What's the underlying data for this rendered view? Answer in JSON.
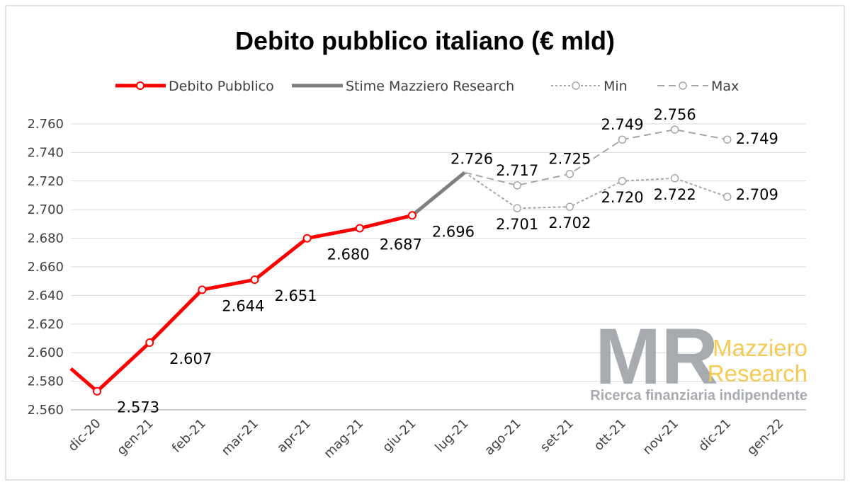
{
  "chart_data": {
    "type": "line",
    "title": "Debito pubblico italiano (€ mld)",
    "categories": [
      "dic-20",
      "gen-21",
      "feb-21",
      "mar-21",
      "apr-21",
      "mag-21",
      "giu-21",
      "lug-21",
      "ago-21",
      "set-21",
      "ott-21",
      "nov-21",
      "dic-21",
      "gen-22"
    ],
    "ylim": [
      2560,
      2760
    ],
    "yticks": [
      "2.560",
      "2.580",
      "2.600",
      "2.620",
      "2.640",
      "2.660",
      "2.680",
      "2.700",
      "2.720",
      "2.740",
      "2.760"
    ],
    "grid": true,
    "legend_position": "top",
    "series": [
      {
        "name": "Debito Pubblico",
        "color": "#ff0000",
        "style": "solid",
        "values": [
          2573,
          2607,
          2644,
          2651,
          2680,
          2687,
          2696,
          null,
          null,
          null,
          null,
          null,
          null,
          null
        ],
        "labels": [
          "2.573",
          "2.607",
          "2.644",
          "2.651",
          "2.680",
          "2.687",
          "2.696"
        ]
      },
      {
        "name": "Stime Mazziero Research",
        "color": "#7f7f7f",
        "style": "solid",
        "values": [
          null,
          null,
          null,
          null,
          null,
          null,
          2696,
          2726,
          null,
          null,
          null,
          null,
          null,
          null
        ],
        "labels": [
          "2.726"
        ]
      },
      {
        "name": "Min",
        "color": "#a6a6a6",
        "style": "dotted",
        "values": [
          null,
          null,
          null,
          null,
          null,
          null,
          null,
          2726,
          2701,
          2702,
          2720,
          2722,
          2709,
          null
        ],
        "labels": [
          "2.701",
          "2.702",
          "2.720",
          "2.722",
          "2.709"
        ]
      },
      {
        "name": "Max",
        "color": "#a6a6a6",
        "style": "dashed",
        "values": [
          null,
          null,
          null,
          null,
          null,
          null,
          null,
          2726,
          2717,
          2725,
          2749,
          2756,
          2749,
          null
        ],
        "labels": [
          "2.717",
          "2.725",
          "2.749",
          "2.756",
          "2.749"
        ]
      }
    ]
  },
  "watermark": {
    "logo_text": "MR",
    "brand_line1": "Mazziero",
    "brand_line2": "Research",
    "tagline": "Ricerca finanziaria indipendente",
    "colors": {
      "logo": "#9ea3a8",
      "brand": "#f5c542",
      "tagline": "#9ea3a8"
    }
  }
}
